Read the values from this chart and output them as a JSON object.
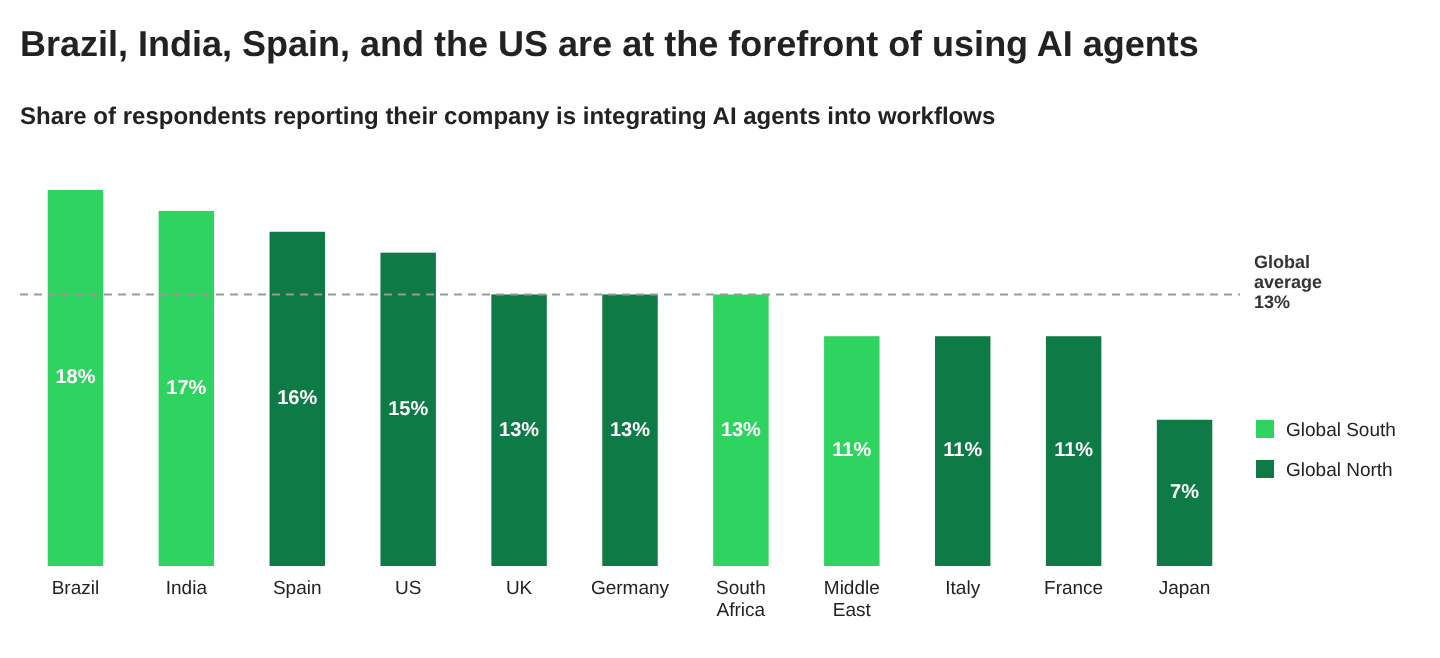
{
  "chart_data": {
    "type": "bar",
    "title": "Brazil, India, Spain, and the US are at the forefront of using AI agents",
    "subtitle": "Share of respondents reporting their company is integrating AI agents into workflows",
    "categories": [
      "Brazil",
      "India",
      "Spain",
      "US",
      "UK",
      "Germany",
      "South Africa",
      "Middle East",
      "Italy",
      "France",
      "Japan"
    ],
    "series": [
      {
        "name": "Global South",
        "color": "#2fd35f",
        "values": [
          18,
          17,
          null,
          null,
          null,
          null,
          13,
          11,
          null,
          null,
          null
        ],
        "value_labels": [
          "18%",
          "17%",
          null,
          null,
          null,
          null,
          "13%",
          "11%",
          null,
          null,
          null
        ]
      },
      {
        "name": "Global North",
        "color": "#0e7a45",
        "values": [
          null,
          null,
          16,
          15,
          13,
          13,
          null,
          null,
          11,
          11,
          7
        ],
        "value_labels": [
          null,
          null,
          "16%",
          "15%",
          "13%",
          "13%",
          null,
          null,
          "11%",
          "11%",
          "7%"
        ]
      }
    ],
    "ref_lines": [
      {
        "axis": "y",
        "value": 13,
        "label": "Global average 13%",
        "color": "#999999",
        "line_style": "dashed"
      }
    ],
    "legend": "right"
  }
}
